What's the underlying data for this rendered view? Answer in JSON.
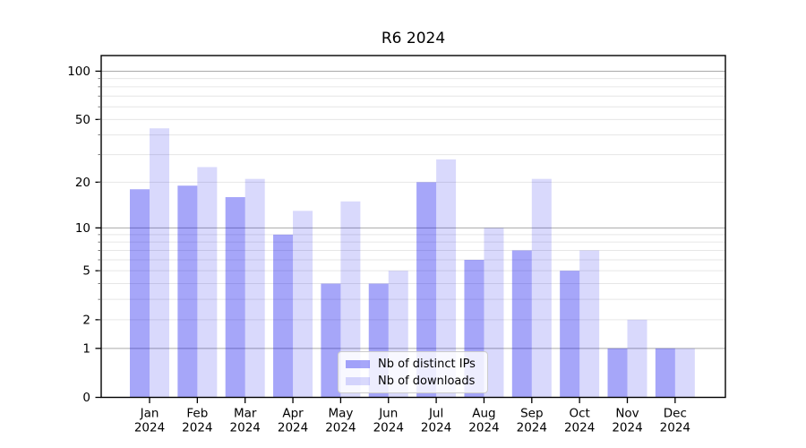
{
  "title": "R6 2024",
  "chart_data": {
    "type": "bar",
    "title": "R6 2024",
    "categories": [
      "Jan",
      "Feb",
      "Mar",
      "Apr",
      "May",
      "Jun",
      "Jul",
      "Aug",
      "Sep",
      "Oct",
      "Nov",
      "Dec"
    ],
    "category_year": "2024",
    "series": [
      {
        "name": "Nb of distinct IPs",
        "color": "#0000ee",
        "opacity": 0.35,
        "values": [
          18,
          19,
          16,
          9,
          4,
          4,
          20,
          6,
          7,
          5,
          1,
          1
        ]
      },
      {
        "name": "Nb of downloads",
        "color": "#0000ee",
        "opacity": 0.15,
        "values": [
          44,
          25,
          21,
          13,
          15,
          5,
          28,
          10,
          21,
          7,
          2,
          1
        ]
      }
    ],
    "xlabel": "",
    "ylabel": "",
    "y_axis": {
      "scale": "log1p",
      "tick_values": [
        0,
        1,
        2,
        5,
        10,
        20,
        50,
        100
      ],
      "major_grid_values": [
        1,
        10,
        100
      ],
      "minor_grid_values": [
        2,
        3,
        4,
        5,
        6,
        7,
        8,
        9,
        20,
        30,
        40,
        50,
        60,
        70,
        80,
        90
      ],
      "ylim": [
        0,
        125
      ]
    },
    "legend": {
      "position": "lower center",
      "entries": [
        "Nb of distinct IPs",
        "Nb of downloads"
      ]
    },
    "grid": true
  },
  "colors": {
    "bar_blue": "#0000ee",
    "major_grid": "#aaaaaa",
    "minor_grid": "#e6e6e6",
    "axis": "#000000",
    "legend_border": "#cccccc",
    "legend_bg": "rgba(255,255,255,0.8)",
    "text": "#000000"
  }
}
